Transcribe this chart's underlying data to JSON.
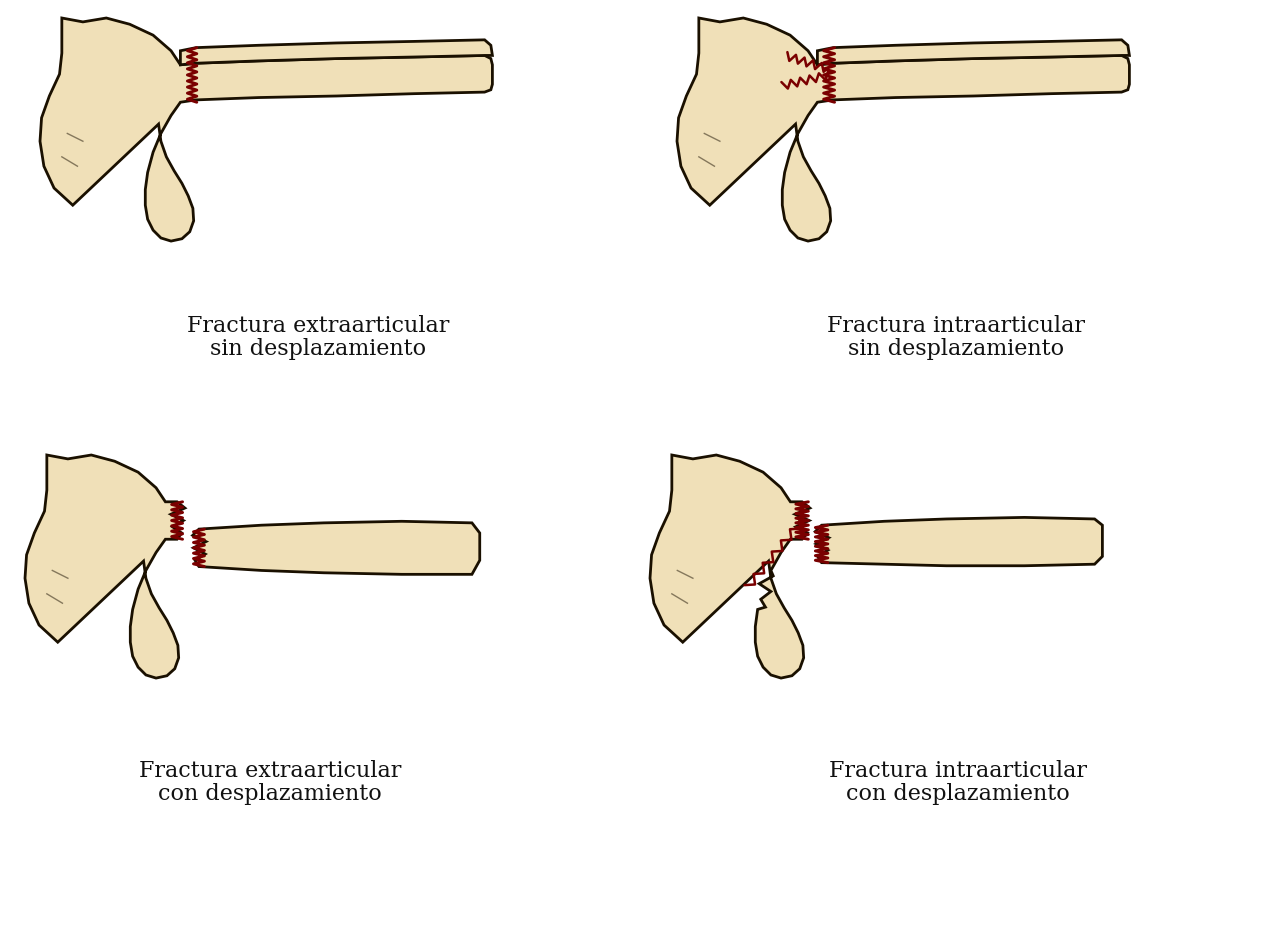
{
  "background_color": "#ffffff",
  "bone_fill": "#f0e0b8",
  "bone_fill2": "#ede0c0",
  "bone_outline": "#1a1000",
  "fracture_color": "#7a0000",
  "text_color": "#111111",
  "labels": [
    [
      "Fractura extraarticular",
      "sin desplazamiento"
    ],
    [
      "Fractura intraarticular",
      "sin desplazamiento"
    ],
    [
      "Fractura extraarticular",
      "con desplazamiento"
    ],
    [
      "Fractura intraarticular",
      "con desplazamiento"
    ]
  ],
  "label_fontsize": 16,
  "figsize": [
    12.75,
    9.43
  ],
  "dpi": 100
}
